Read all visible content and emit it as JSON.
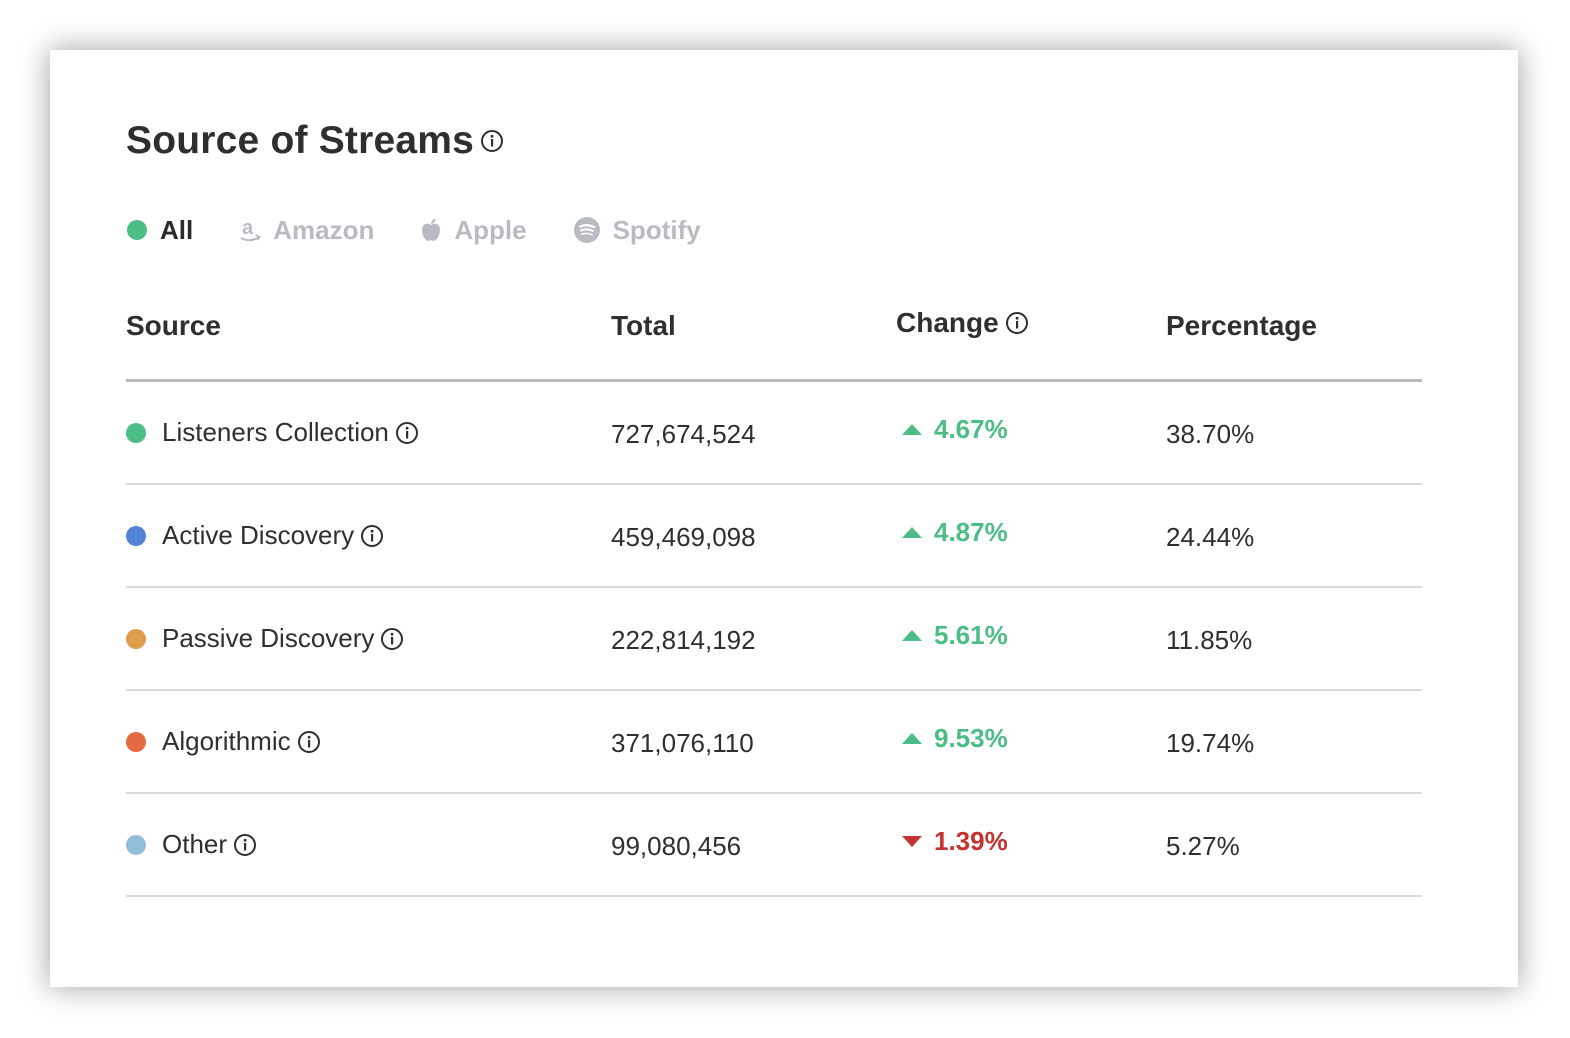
{
  "title": "Source of Streams",
  "filters": [
    {
      "label": "All",
      "icon": "dot-icon",
      "active": true
    },
    {
      "label": "Amazon",
      "icon": "amazon-icon",
      "active": false
    },
    {
      "label": "Apple",
      "icon": "apple-icon",
      "active": false
    },
    {
      "label": "Spotify",
      "icon": "spotify-icon",
      "active": false
    }
  ],
  "table": {
    "headers": {
      "source": "Source",
      "total": "Total",
      "change": "Change",
      "percentage": "Percentage"
    },
    "rows": [
      {
        "source": "Listeners Collection",
        "color": "#4dbd86",
        "total": "727,674,524",
        "change": "4.67%",
        "direction": "up",
        "percentage": "38.70%"
      },
      {
        "source": "Active Discovery",
        "color": "#5683d6",
        "total": "459,469,098",
        "change": "4.87%",
        "direction": "up",
        "percentage": "24.44%"
      },
      {
        "source": "Passive Discovery",
        "color": "#dd9f4e",
        "total": "222,814,192",
        "change": "5.61%",
        "direction": "up",
        "percentage": "11.85%"
      },
      {
        "source": "Algorithmic",
        "color": "#e56a43",
        "total": "371,076,110",
        "change": "9.53%",
        "direction": "up",
        "percentage": "19.74%"
      },
      {
        "source": "Other",
        "color": "#93bcd9",
        "total": "99,080,456",
        "change": "1.39%",
        "direction": "down",
        "percentage": "5.27%"
      }
    ]
  },
  "colors": {
    "positive": "#4dbd86",
    "negative": "#c53330",
    "active_filter_dot": "#4dbd86",
    "inactive_text": "#b8bcc2"
  }
}
